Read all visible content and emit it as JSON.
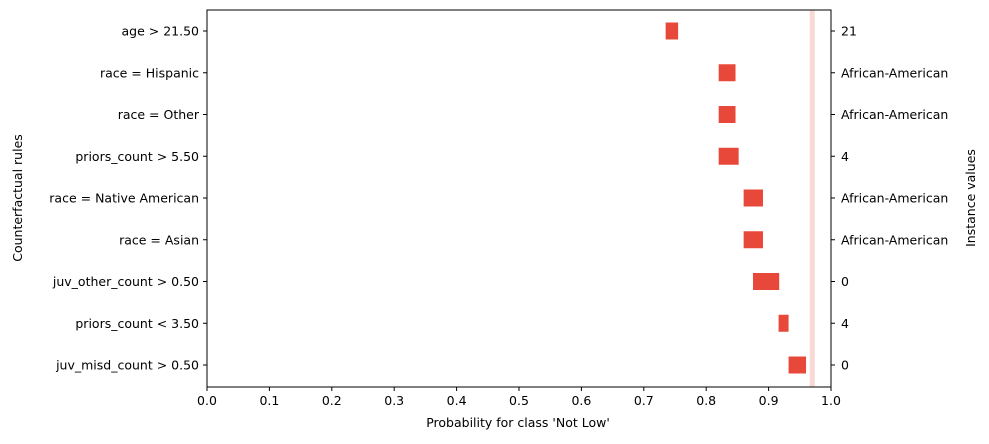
{
  "colors": {
    "interval": "#E8483A",
    "reference_line": "#F8D9D6",
    "axis": "#000000",
    "background": "#ffffff"
  },
  "chart_data": {
    "type": "bar",
    "orientation": "horizontal",
    "xlabel": "Probability for class 'Not Low'",
    "ylabel": "Counterfactual rules",
    "y2label": "Instance values",
    "xlim": [
      0.0,
      1.0
    ],
    "xticks": [
      "0.0",
      "0.1",
      "0.2",
      "0.3",
      "0.4",
      "0.5",
      "0.6",
      "0.7",
      "0.8",
      "0.9",
      "1.0"
    ],
    "grid": false,
    "reference_value": 0.97,
    "rules": [
      {
        "rule": "age > 21.50",
        "instance_value": "21",
        "low": 0.735,
        "high": 0.755
      },
      {
        "rule": "race = Hispanic",
        "instance_value": "African-American",
        "low": 0.82,
        "high": 0.847
      },
      {
        "rule": "race = Other",
        "instance_value": "African-American",
        "low": 0.82,
        "high": 0.847
      },
      {
        "rule": "priors_count > 5.50",
        "instance_value": "4",
        "low": 0.82,
        "high": 0.852
      },
      {
        "rule": "race = Native American",
        "instance_value": "African-American",
        "low": 0.86,
        "high": 0.891
      },
      {
        "rule": "race = Asian",
        "instance_value": "African-American",
        "low": 0.86,
        "high": 0.891
      },
      {
        "rule": "juv_other_count > 0.50",
        "instance_value": "0",
        "low": 0.875,
        "high": 0.917
      },
      {
        "rule": "priors_count < 3.50",
        "instance_value": "4",
        "low": 0.916,
        "high": 0.932
      },
      {
        "rule": "juv_misd_count > 0.50",
        "instance_value": "0",
        "low": 0.932,
        "high": 0.96
      }
    ]
  }
}
